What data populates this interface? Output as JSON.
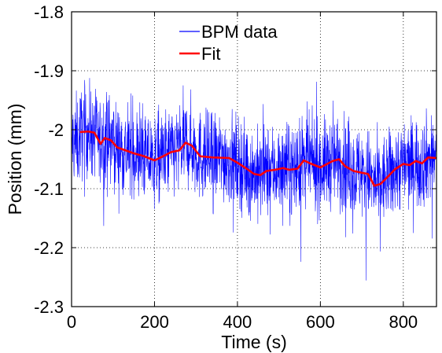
{
  "chart_data": {
    "type": "line",
    "xlabel": "Time (s)",
    "ylabel": "Position (mm)",
    "xlim": [
      0,
      880
    ],
    "ylim": [
      -2.3,
      -1.8
    ],
    "x_ticks": [
      0,
      200,
      400,
      600,
      800
    ],
    "y_ticks": [
      -1.8,
      -1.9,
      -2.0,
      -2.1,
      -2.2,
      -2.3
    ],
    "x_tick_labels": [
      "0",
      "200",
      "400",
      "600",
      "800"
    ],
    "y_tick_labels": [
      "-1.8",
      "-1.9",
      "-2",
      "-2.1",
      "-2.2",
      "-2.3"
    ],
    "grid": true,
    "legend_position": "top-center",
    "series": [
      {
        "name": "BPM data",
        "color": "#0000ff",
        "style": "dense noisy trace",
        "x_range": [
          0,
          880
        ],
        "sample_count": 1760,
        "noise_envelope_mm": [
          -0.22,
          0.22
        ]
      },
      {
        "name": "Fit",
        "color": "#ff0000",
        "x": [
          20,
          40,
          55,
          70,
          80,
          95,
          110,
          130,
          150,
          175,
          200,
          215,
          240,
          260,
          275,
          290,
          310,
          340,
          380,
          400,
          420,
          440,
          455,
          470,
          490,
          510,
          525,
          545,
          560,
          575,
          600,
          630,
          645,
          660,
          680,
          700,
          715,
          730,
          745,
          765,
          780,
          800,
          815,
          830,
          845,
          860,
          880
        ],
        "y": [
          -2.004,
          -2.003,
          -2.005,
          -2.024,
          -2.014,
          -2.018,
          -2.03,
          -2.035,
          -2.04,
          -2.045,
          -2.052,
          -2.047,
          -2.038,
          -2.035,
          -2.022,
          -2.027,
          -2.045,
          -2.047,
          -2.048,
          -2.056,
          -2.065,
          -2.075,
          -2.077,
          -2.07,
          -2.068,
          -2.065,
          -2.068,
          -2.066,
          -2.052,
          -2.057,
          -2.064,
          -2.053,
          -2.05,
          -2.062,
          -2.07,
          -2.073,
          -2.075,
          -2.095,
          -2.092,
          -2.078,
          -2.067,
          -2.058,
          -2.06,
          -2.053,
          -2.057,
          -2.047,
          -2.048
        ]
      }
    ]
  }
}
